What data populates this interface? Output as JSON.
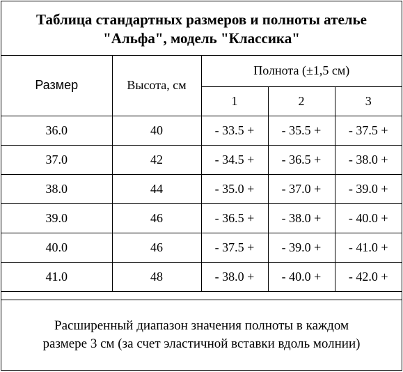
{
  "title": {
    "line1": "Таблица стандартных размеров и полноты ателье",
    "line2": "\"Альфа\", модель \"Классика\""
  },
  "table": {
    "headers": {
      "size": "Размер",
      "height": "Высота, см",
      "fullness": "Полнота (±1,5 см)",
      "fullness_columns": [
        "1",
        "2",
        "3"
      ]
    },
    "rows": [
      {
        "size": "36.0",
        "height": "40",
        "f1": "- 33.5 +",
        "f2": "- 35.5 +",
        "f3": "- 37.5 +"
      },
      {
        "size": "37.0",
        "height": "42",
        "f1": "- 34.5 +",
        "f2": "- 36.5 +",
        "f3": "- 38.0 +"
      },
      {
        "size": "38.0",
        "height": "44",
        "f1": "- 35.0 +",
        "f2": "- 37.0 +",
        "f3": "- 39.0 +"
      },
      {
        "size": "39.0",
        "height": "46",
        "f1": "- 36.5 +",
        "f2": "- 38.0 +",
        "f3": "- 40.0 +"
      },
      {
        "size": "40.0",
        "height": "46",
        "f1": "- 37.5 +",
        "f2": "- 39.0 +",
        "f3": "- 41.0 +"
      },
      {
        "size": "41.0",
        "height": "48",
        "f1": "- 38.0 +",
        "f2": "- 40.0 +",
        "f3": "- 42.0 +"
      }
    ]
  },
  "note": {
    "line1": "Расширенный диапазон значения полноты в каждом",
    "line2": "размере 3 см (за счет эластичной вставки вдоль молнии)"
  }
}
